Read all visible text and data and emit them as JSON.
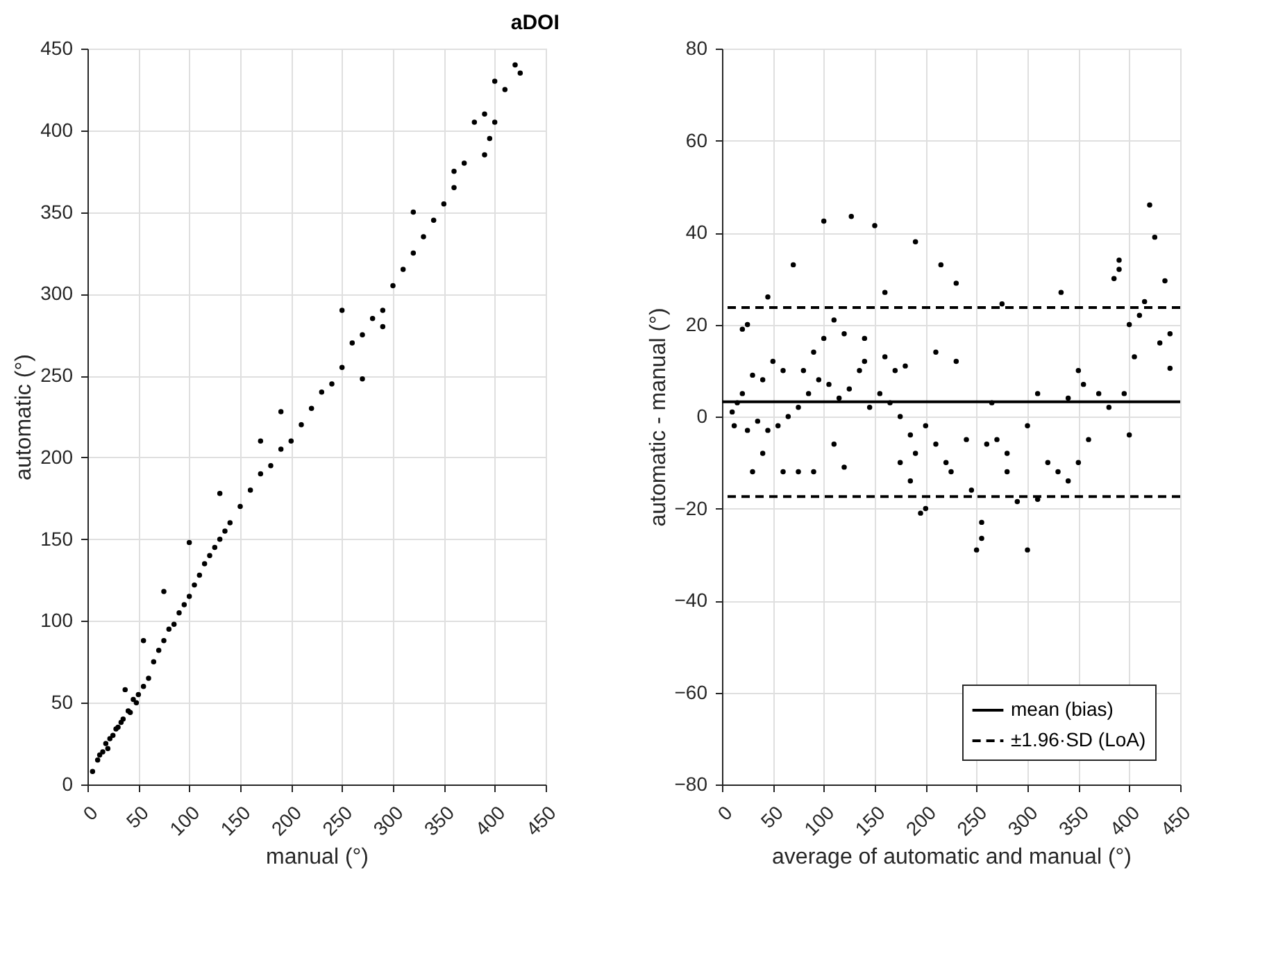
{
  "chart_data": [
    {
      "type": "scatter",
      "title": "aDOI",
      "xlabel": "manual (°)",
      "ylabel": "automatic (°)",
      "xlim": [
        0,
        450
      ],
      "ylim": [
        0,
        450
      ],
      "xticks": [
        0,
        50,
        100,
        150,
        200,
        250,
        300,
        350,
        400,
        450
      ],
      "yticks": [
        0,
        50,
        100,
        150,
        200,
        250,
        300,
        350,
        400,
        450
      ],
      "grid": true,
      "marker": "circle",
      "legend": false,
      "series": [
        {
          "color": "#000000",
          "x": [
            5,
            10,
            15,
            20,
            25,
            30,
            35,
            40,
            45,
            50,
            55,
            60,
            65,
            70,
            75,
            80,
            85,
            90,
            95,
            100,
            105,
            110,
            115,
            120,
            125,
            130,
            135,
            140,
            150,
            160,
            170,
            180,
            190,
            200,
            210,
            220,
            230,
            240,
            250,
            260,
            270,
            280,
            290,
            300,
            310,
            320,
            330,
            340,
            350,
            360,
            370,
            380,
            390,
            400,
            410,
            420,
            425,
            37,
            55,
            75,
            100,
            130,
            170,
            190,
            250,
            270,
            290,
            320,
            360,
            390,
            400,
            395,
            12,
            18,
            22,
            28,
            33,
            42,
            48
          ],
          "values": [
            8,
            15,
            20,
            22,
            30,
            35,
            40,
            45,
            52,
            55,
            60,
            65,
            75,
            82,
            88,
            95,
            98,
            105,
            110,
            115,
            122,
            128,
            135,
            140,
            145,
            150,
            155,
            160,
            170,
            180,
            190,
            195,
            205,
            210,
            220,
            230,
            240,
            245,
            255,
            270,
            275,
            285,
            290,
            305,
            315,
            325,
            335,
            345,
            355,
            365,
            380,
            405,
            410,
            405,
            425,
            440,
            435,
            58,
            88,
            118,
            148,
            178,
            210,
            228,
            290,
            248,
            280,
            350,
            375,
            385,
            430,
            395,
            18,
            25,
            28,
            34,
            38,
            44,
            50
          ]
        }
      ]
    },
    {
      "type": "scatter",
      "xlabel": "average of automatic and manual (°)",
      "ylabel": "automatic - manual (°)",
      "xlim": [
        0,
        450
      ],
      "ylim": [
        -80,
        80
      ],
      "xticks": [
        0,
        50,
        100,
        150,
        200,
        250,
        300,
        350,
        400,
        450
      ],
      "yticks": [
        -80,
        -60,
        -40,
        -20,
        0,
        20,
        40,
        60,
        80
      ],
      "grid": true,
      "marker": "circle",
      "legend": "bottom right",
      "ref_lines": [
        {
          "axis": "y",
          "value": 3.2,
          "label": "mean (bias)",
          "line_style": "solid"
        },
        {
          "axis": "y",
          "value": 23.7,
          "label": "±1.96·SD (LoA)",
          "line_style": "dashed"
        },
        {
          "axis": "y",
          "value": -17.4,
          "line_style": "dashed"
        }
      ],
      "series": [
        {
          "color": "#000000",
          "x": [
            100,
            127,
            150,
            190,
            160,
            70,
            45,
            215,
            230,
            275,
            333,
            420,
            425,
            435,
            390,
            390,
            385,
            400,
            410,
            415,
            405,
            440,
            440,
            430,
            250,
            300,
            255,
            255,
            195,
            200,
            290,
            310,
            190,
            220,
            240,
            260,
            280,
            320,
            330,
            340,
            350,
            360,
            370,
            380,
            395,
            400,
            265,
            270,
            230,
            210,
            180,
            170,
            140,
            120,
            110,
            100,
            90,
            80,
            60,
            50,
            40,
            30,
            20,
            15,
            10,
            12,
            25,
            35,
            45,
            55,
            65,
            75,
            85,
            95,
            105,
            115,
            125,
            135,
            145,
            155,
            165,
            175,
            185,
            200,
            210,
            225,
            245,
            280,
            300,
            310,
            340,
            350,
            355,
            30,
            40,
            60,
            75,
            20,
            25,
            90,
            110,
            120,
            140,
            160,
            175,
            185
          ],
          "values": [
            42.5,
            43.5,
            41.5,
            38,
            27,
            33,
            26,
            33,
            29,
            24.5,
            27,
            46,
            39,
            29.5,
            34,
            32,
            30,
            20,
            22,
            25,
            13,
            10.5,
            18,
            16,
            -29,
            -29,
            -23,
            -26.5,
            -21,
            -20,
            -18.5,
            -18,
            -8,
            -10,
            -5,
            -6,
            -12,
            -10,
            -12,
            -14,
            -10,
            -5,
            5,
            2,
            5,
            -4,
            3,
            -5,
            12,
            14,
            11,
            10,
            12,
            18,
            21,
            17,
            14,
            10,
            10,
            12,
            8,
            9,
            5,
            3,
            1,
            -2,
            -3,
            -1,
            -3,
            -2,
            0,
            2,
            5,
            8,
            7,
            4,
            6,
            10,
            2,
            5,
            3,
            0,
            -4,
            -2,
            -6,
            -12,
            -16,
            -8,
            -2,
            5,
            4,
            10,
            7,
            -12,
            -8,
            -12,
            -12,
            19,
            20,
            -12,
            -6,
            -11,
            17,
            13,
            -10,
            -14
          ]
        }
      ]
    }
  ]
}
